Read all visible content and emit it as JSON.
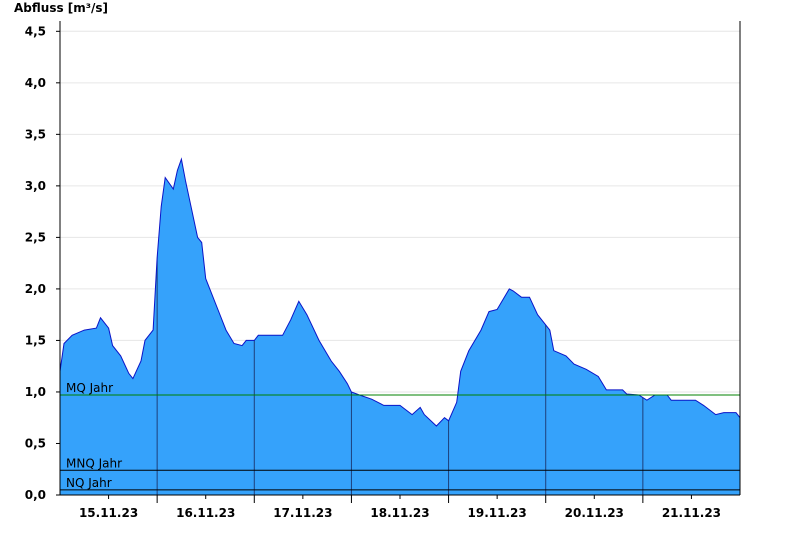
{
  "chart_data": {
    "type": "area",
    "y_label": "Abfluss [m³/s]",
    "color": "#35a2fb",
    "line_color": "#0a14c8",
    "grid": true,
    "ylim": [
      0,
      4.6
    ],
    "yticks": [
      {
        "value": 0,
        "label": "0,0"
      },
      {
        "value": 0.5,
        "label": "0,5"
      },
      {
        "value": 1,
        "label": "1,0"
      },
      {
        "value": 1.5,
        "label": "1,5"
      },
      {
        "value": 2,
        "label": "2,0"
      },
      {
        "value": 2.5,
        "label": "2,5"
      },
      {
        "value": 3,
        "label": "3,0"
      },
      {
        "value": 3.5,
        "label": "3,5"
      },
      {
        "value": 4,
        "label": "4,0"
      },
      {
        "value": 4.5,
        "label": "4,5"
      }
    ],
    "xlim": [
      "2023-11-15T00:00",
      "2023-11-22T00:00"
    ],
    "xticks": [
      {
        "value": "2023-11-15T12:00",
        "label": "15.11.23"
      },
      {
        "value": "2023-11-16T12:00",
        "label": "16.11.23"
      },
      {
        "value": "2023-11-17T12:00",
        "label": "17.11.23"
      },
      {
        "value": "2023-11-18T12:00",
        "label": "18.11.23"
      },
      {
        "value": "2023-11-19T12:00",
        "label": "19.11.23"
      },
      {
        "value": "2023-11-20T12:00",
        "label": "20.11.23"
      },
      {
        "value": "2023-11-21T12:00",
        "label": "21.11.23"
      }
    ],
    "day_lines": [
      "2023-11-16T00:00",
      "2023-11-17T00:00",
      "2023-11-18T00:00",
      "2023-11-19T00:00",
      "2023-11-20T00:00",
      "2023-11-21T00:00"
    ],
    "reference_lines": [
      {
        "label": "MQ Jahr",
        "value": 0.97,
        "color": "#008000"
      },
      {
        "label": "MNQ Jahr",
        "value": 0.24,
        "color": "#000000"
      },
      {
        "label": "NQ Jahr",
        "value": 0.05,
        "color": "#000000"
      }
    ],
    "x": [
      "2023-11-15T00:00",
      "2023-11-15T01:00",
      "2023-11-15T03:00",
      "2023-11-15T06:00",
      "2023-11-15T09:00",
      "2023-11-15T10:00",
      "2023-11-15T12:00",
      "2023-11-15T13:00",
      "2023-11-15T15:00",
      "2023-11-15T17:00",
      "2023-11-15T18:00",
      "2023-11-15T20:00",
      "2023-11-15T21:00",
      "2023-11-15T23:00",
      "2023-11-16T00:00",
      "2023-11-16T01:00",
      "2023-11-16T02:00",
      "2023-11-16T04:00",
      "2023-11-16T05:00",
      "2023-11-16T06:00",
      "2023-11-16T07:00",
      "2023-11-16T10:00",
      "2023-11-16T11:00",
      "2023-11-16T12:00",
      "2023-11-16T15:00",
      "2023-11-16T17:00",
      "2023-11-16T19:00",
      "2023-11-16T21:00",
      "2023-11-16T22:00",
      "2023-11-17T00:00",
      "2023-11-17T01:00",
      "2023-11-17T07:00",
      "2023-11-17T09:00",
      "2023-11-17T11:00",
      "2023-11-17T13:00",
      "2023-11-17T16:00",
      "2023-11-17T19:00",
      "2023-11-17T21:00",
      "2023-11-17T23:00",
      "2023-11-18T00:00",
      "2023-11-18T02:00",
      "2023-11-18T05:00",
      "2023-11-18T08:00",
      "2023-11-18T12:00",
      "2023-11-18T15:00",
      "2023-11-18T17:00",
      "2023-11-18T18:00",
      "2023-11-18T21:00",
      "2023-11-18T23:00",
      "2023-11-19T00:00",
      "2023-11-19T02:00",
      "2023-11-19T03:00",
      "2023-11-19T05:00",
      "2023-11-19T08:00",
      "2023-11-19T10:00",
      "2023-11-19T12:00",
      "2023-11-19T15:00",
      "2023-11-19T16:00",
      "2023-11-19T18:00",
      "2023-11-19T20:00",
      "2023-11-19T22:00",
      "2023-11-20T01:00",
      "2023-11-20T02:00",
      "2023-11-20T05:00",
      "2023-11-20T07:00",
      "2023-11-20T10:00",
      "2023-11-20T13:00",
      "2023-11-20T15:00",
      "2023-11-20T19:00",
      "2023-11-20T20:00",
      "2023-11-20T23:00",
      "2023-11-21T01:00",
      "2023-11-21T03:00",
      "2023-11-21T06:00",
      "2023-11-21T07:00",
      "2023-11-21T13:00",
      "2023-11-21T15:00",
      "2023-11-21T18:00",
      "2023-11-21T20:00",
      "2023-11-21T23:00",
      "2023-11-22T00:00"
    ],
    "values": [
      1.2,
      1.47,
      1.55,
      1.6,
      1.62,
      1.72,
      1.62,
      1.45,
      1.35,
      1.18,
      1.13,
      1.3,
      1.5,
      1.6,
      2.3,
      2.8,
      3.08,
      2.97,
      3.15,
      3.26,
      3.05,
      2.5,
      2.45,
      2.1,
      1.8,
      1.6,
      1.47,
      1.45,
      1.5,
      1.5,
      1.55,
      1.55,
      1.7,
      1.88,
      1.75,
      1.5,
      1.3,
      1.2,
      1.08,
      1.0,
      0.97,
      0.93,
      0.87,
      0.87,
      0.78,
      0.85,
      0.78,
      0.67,
      0.75,
      0.72,
      0.9,
      1.2,
      1.4,
      1.6,
      1.78,
      1.8,
      2.0,
      1.98,
      1.92,
      1.92,
      1.75,
      1.6,
      1.4,
      1.35,
      1.27,
      1.22,
      1.15,
      1.02,
      1.02,
      0.98,
      0.97,
      0.92,
      0.97,
      0.97,
      0.92,
      0.92,
      0.87,
      0.78,
      0.8,
      0.8,
      0.75
    ]
  }
}
